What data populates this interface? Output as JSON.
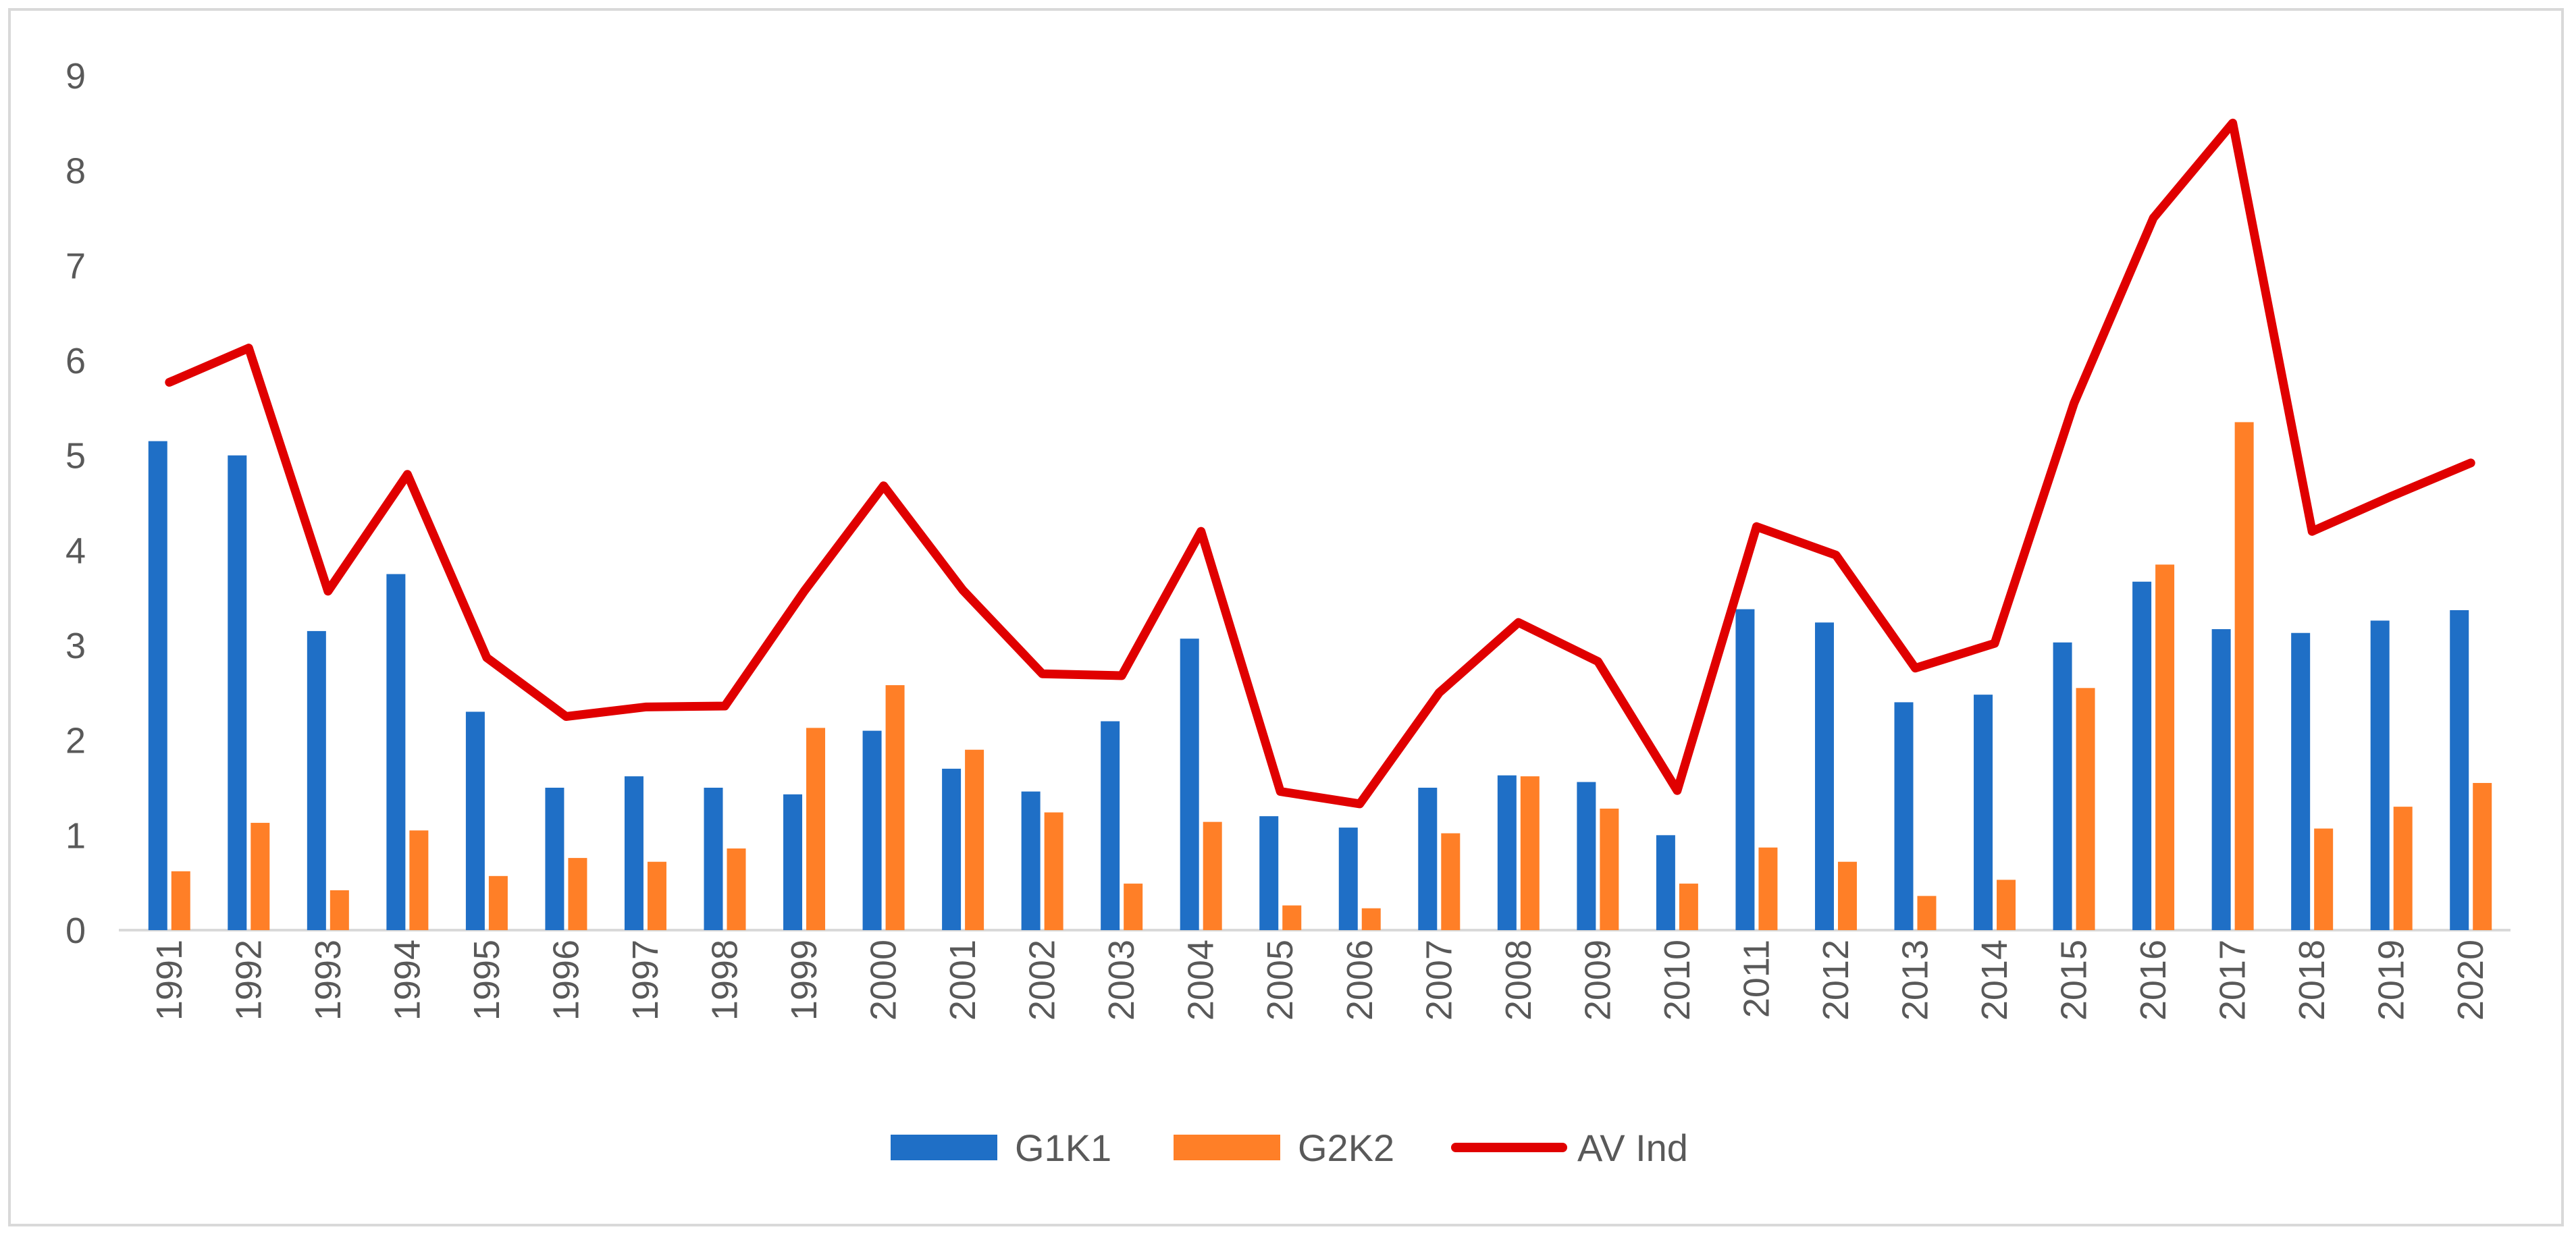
{
  "chart_data": {
    "type": "bar",
    "title": "",
    "xlabel": "",
    "ylabel": "",
    "ylim": [
      0,
      9
    ],
    "yticks": [
      0,
      1,
      2,
      3,
      4,
      5,
      6,
      7,
      8,
      9
    ],
    "grid": false,
    "legend_position": "bottom-center",
    "categories": [
      "1991",
      "1992",
      "1993",
      "1994",
      "1995",
      "1996",
      "1997",
      "1998",
      "1999",
      "2000",
      "2001",
      "2002",
      "2003",
      "2004",
      "2005",
      "2006",
      "2007",
      "2008",
      "2009",
      "2010",
      "2011",
      "2012",
      "2013",
      "2014",
      "2015",
      "2016",
      "2017",
      "2018",
      "2019",
      "2020"
    ],
    "series": [
      {
        "name": "G1K1",
        "kind": "bar",
        "color": "#1f6fc6",
        "values": [
          5.15,
          5.0,
          3.15,
          3.75,
          2.3,
          1.5,
          1.62,
          1.5,
          1.43,
          2.1,
          1.7,
          1.46,
          2.2,
          3.07,
          1.2,
          1.08,
          1.5,
          1.63,
          1.56,
          1.0,
          3.38,
          3.24,
          2.4,
          2.48,
          3.03,
          3.67,
          3.17,
          3.13,
          3.26,
          3.37
        ]
      },
      {
        "name": "G2K2",
        "kind": "bar",
        "color": "#ff7f27",
        "values": [
          0.62,
          1.13,
          0.42,
          1.05,
          0.57,
          0.76,
          0.72,
          0.86,
          2.13,
          2.58,
          1.9,
          1.24,
          0.49,
          1.14,
          0.26,
          0.23,
          1.02,
          1.62,
          1.28,
          0.49,
          0.87,
          0.72,
          0.36,
          0.53,
          2.55,
          3.85,
          5.35,
          1.07,
          1.3,
          1.55
        ]
      },
      {
        "name": "AV Ind",
        "kind": "line",
        "color": "#e00000",
        "values": [
          5.77,
          6.13,
          3.57,
          4.8,
          2.87,
          2.25,
          2.35,
          2.36,
          3.57,
          4.68,
          3.58,
          2.7,
          2.68,
          4.2,
          1.46,
          1.33,
          2.5,
          3.24,
          2.83,
          1.47,
          4.25,
          3.95,
          2.76,
          3.02,
          5.55,
          7.5,
          8.5,
          4.2,
          4.57,
          4.92
        ]
      }
    ]
  }
}
